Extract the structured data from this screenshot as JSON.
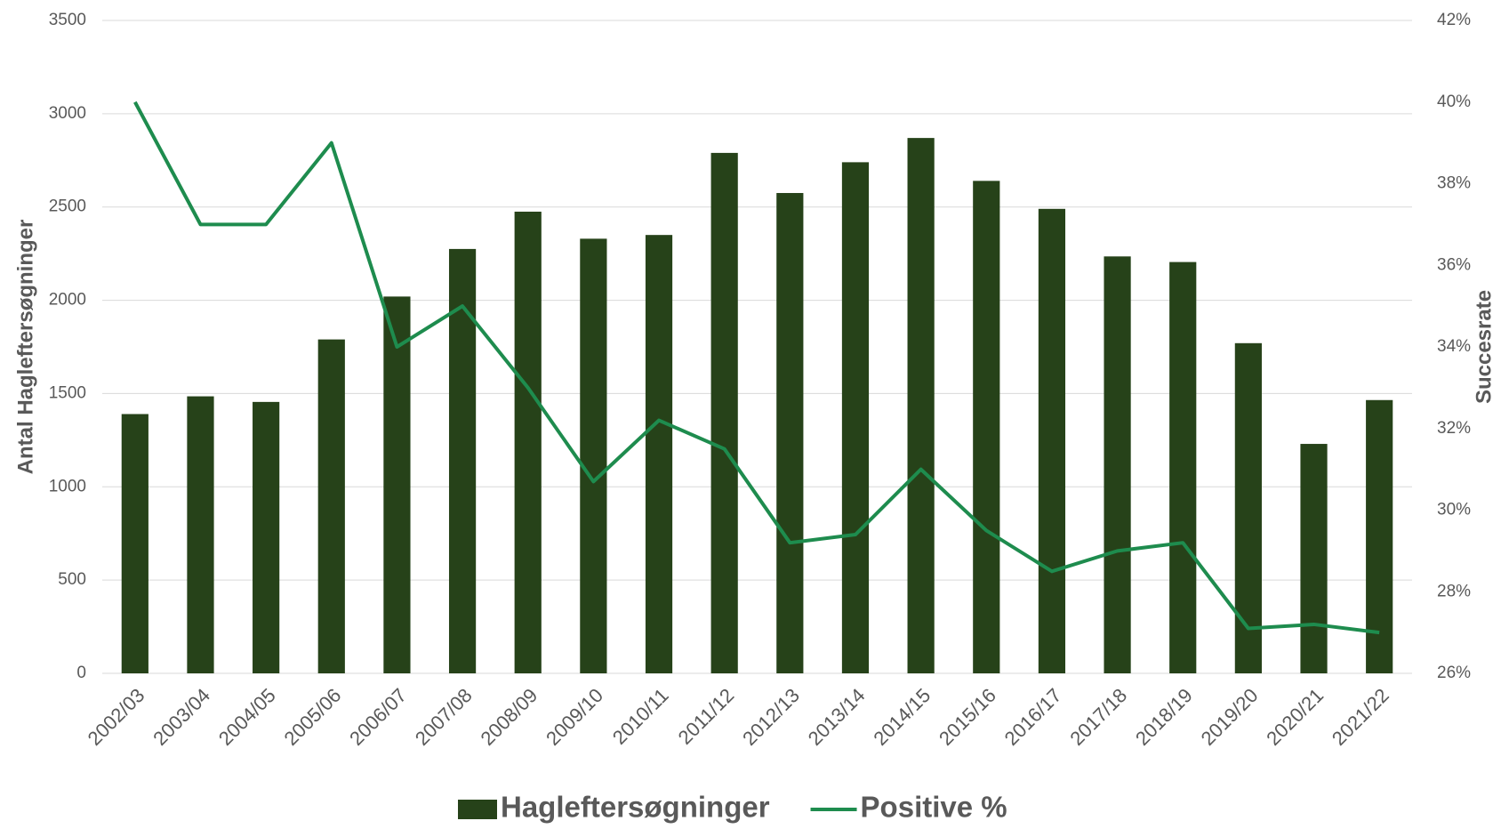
{
  "chart_data": {
    "type": "bar_line",
    "y_label": "Antal Hagleftersøgninger",
    "y2_label": "Succesrate",
    "categories": [
      "2002/03",
      "2003/04",
      "2004/05",
      "2005/06",
      "2006/07",
      "2007/08",
      "2008/09",
      "2009/10",
      "2010/11",
      "2011/12",
      "2012/13",
      "2013/14",
      "2014/15",
      "2015/16",
      "2016/17",
      "2017/18",
      "2018/19",
      "2019/20",
      "2020/21",
      "2021/22"
    ],
    "series": [
      {
        "name": "Hagleftersøgninger",
        "type": "bar",
        "color": "#264219",
        "values": [
          1390,
          1485,
          1455,
          1790,
          2020,
          2275,
          2475,
          2330,
          2350,
          2790,
          2575,
          2740,
          2870,
          2640,
          2490,
          2235,
          2205,
          1770,
          1230,
          1465
        ]
      },
      {
        "name": "Positive %",
        "type": "line",
        "axis": "y2",
        "color": "#1e8c4e",
        "values": [
          40,
          37,
          37,
          39,
          34,
          35,
          33,
          30.7,
          32.2,
          31.5,
          29.2,
          29.4,
          31,
          29.5,
          28.5,
          29,
          29.2,
          27.1,
          27.2,
          27.0
        ]
      }
    ],
    "ylim": [
      0,
      3500
    ],
    "yticks": [
      0,
      500,
      1000,
      1500,
      2000,
      2500,
      3000,
      3500
    ],
    "y2lim": [
      26,
      42
    ],
    "y2ticks": [
      {
        "value": 26,
        "label": "26%"
      },
      {
        "value": 28,
        "label": "28%"
      },
      {
        "value": 30,
        "label": "30%"
      },
      {
        "value": 32,
        "label": "32%"
      },
      {
        "value": 34,
        "label": "34%"
      },
      {
        "value": 36,
        "label": "36%"
      },
      {
        "value": 38,
        "label": "38%"
      },
      {
        "value": 40,
        "label": "40%"
      },
      {
        "value": 42,
        "label": "42%"
      }
    ],
    "grid": true,
    "legend": "bottom"
  }
}
